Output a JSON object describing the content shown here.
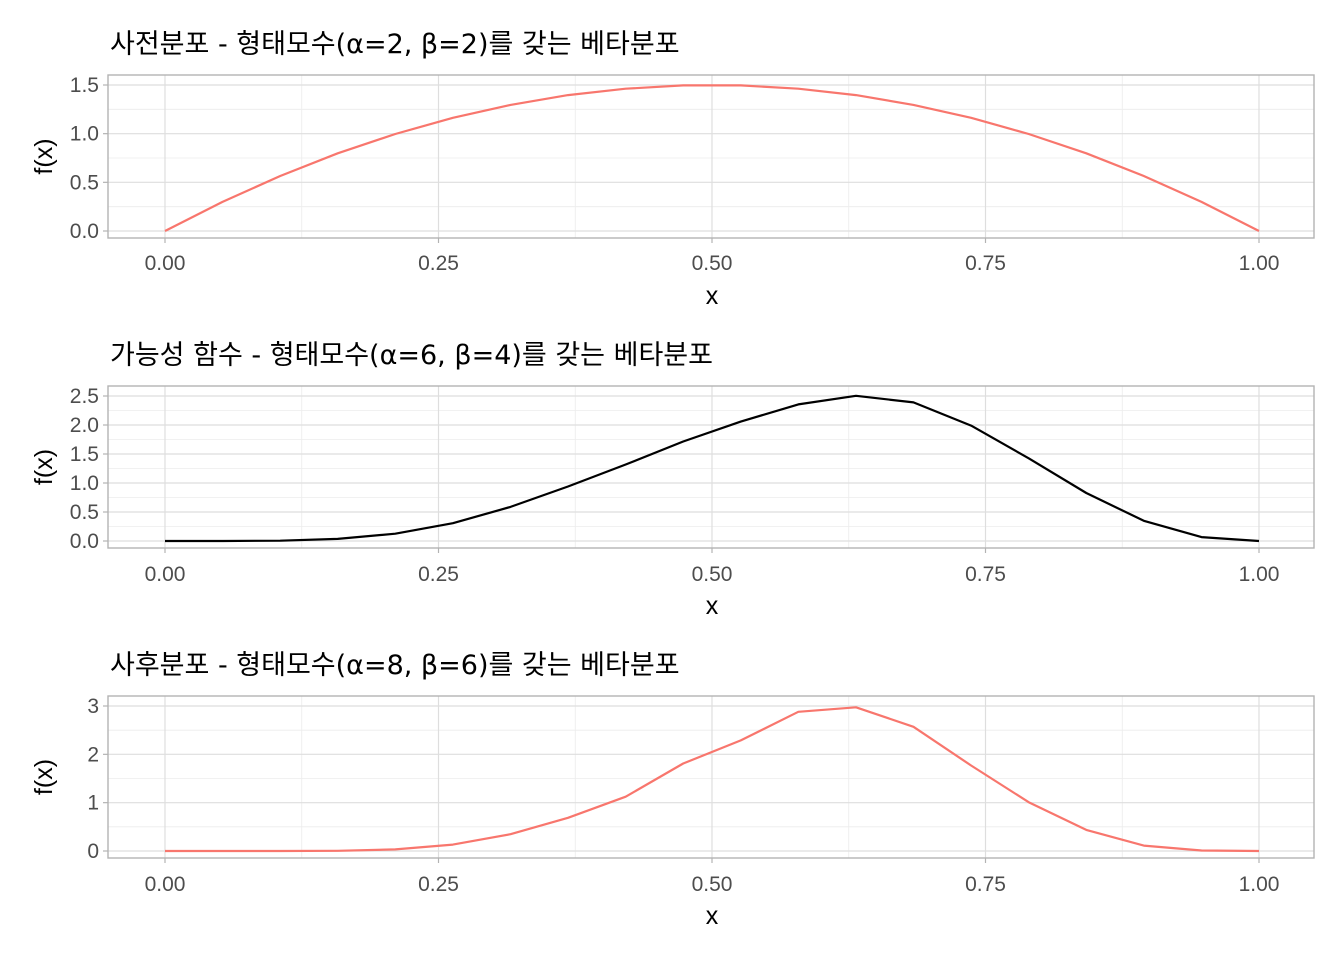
{
  "colors": {
    "prior_line": "#f8766d",
    "likelihood_line": "#000000",
    "posterior_line": "#f8766d",
    "grid": "#dedede",
    "border": "#b3b3b3"
  },
  "chart_data": [
    {
      "type": "line",
      "title": "사전분포 - 형태모수(α=2, β=2)를 갖는 베타분포",
      "xlabel": "x",
      "ylabel": "f(x)",
      "xlim": [
        0,
        1
      ],
      "ylim": [
        0,
        1.5
      ],
      "x_ticks": [
        0,
        0.25,
        0.5,
        0.75,
        1
      ],
      "x_tick_labels": [
        "0.00",
        "0.25",
        "0.50",
        "0.75",
        "1.00"
      ],
      "y_ticks": [
        0,
        0.5,
        1,
        1.5
      ],
      "y_tick_labels": [
        "0.0",
        "0.5",
        "1.0",
        "1.5"
      ],
      "grid": true,
      "color": "#f8766d",
      "series": [
        {
          "x": [
            0,
            0.0526,
            0.1053,
            0.1579,
            0.2105,
            0.2632,
            0.3158,
            0.3684,
            0.4211,
            0.4737,
            0.5263,
            0.5789,
            0.6316,
            0.6842,
            0.7368,
            0.7895,
            0.8421,
            0.8947,
            0.9474,
            1
          ],
          "y": [
            0,
            0.299,
            0.565,
            0.798,
            0.997,
            1.163,
            1.296,
            1.396,
            1.462,
            1.496,
            1.496,
            1.462,
            1.396,
            1.296,
            1.163,
            0.997,
            0.798,
            0.565,
            0.299,
            0
          ]
        }
      ]
    },
    {
      "type": "line",
      "title": "가능성 함수 - 형태모수(α=6, β=4)를 갖는 베타분포",
      "xlabel": "x",
      "ylabel": "f(x)",
      "xlim": [
        0,
        1
      ],
      "ylim": [
        0,
        2.5
      ],
      "x_ticks": [
        0,
        0.25,
        0.5,
        0.75,
        1
      ],
      "x_tick_labels": [
        "0.00",
        "0.25",
        "0.50",
        "0.75",
        "1.00"
      ],
      "y_ticks": [
        0,
        0.5,
        1,
        1.5,
        2,
        2.5
      ],
      "y_tick_labels": [
        "0.0",
        "0.5",
        "1.0",
        "1.5",
        "2.0",
        "2.5"
      ],
      "grid": true,
      "color": "#000000",
      "series": [
        {
          "x": [
            0,
            0.0526,
            0.1053,
            0.1579,
            0.2105,
            0.2632,
            0.3158,
            0.3684,
            0.4211,
            0.4737,
            0.5263,
            0.5789,
            0.6316,
            0.6842,
            0.7368,
            0.7895,
            0.8421,
            0.8947,
            0.9474,
            1
          ],
          "y": [
            0,
            0.0002,
            0.0056,
            0.0363,
            0.1262,
            0.3074,
            0.5884,
            0.9398,
            1.3183,
            1.7157,
            2.0587,
            2.3549,
            2.5042,
            2.3903,
            1.9901,
            1.4258,
            0.8281,
            0.3488,
            0.0678,
            0
          ]
        }
      ]
    },
    {
      "type": "line",
      "title": "사후분포 - 형태모수(α=8, β=6)를 갖는 베타분포",
      "xlabel": "x",
      "ylabel": "f(x)",
      "xlim": [
        0,
        1
      ],
      "ylim": [
        0,
        3
      ],
      "x_ticks": [
        0,
        0.25,
        0.5,
        0.75,
        1
      ],
      "x_tick_labels": [
        "0.00",
        "0.25",
        "0.50",
        "0.75",
        "1.00"
      ],
      "y_ticks": [
        0,
        1,
        2,
        3
      ],
      "y_tick_labels": [
        "0",
        "1",
        "2",
        "3"
      ],
      "grid": true,
      "color": "#f8766d",
      "series": [
        {
          "x": [
            0,
            0.0526,
            0.1053,
            0.1579,
            0.2105,
            0.2632,
            0.3158,
            0.3684,
            0.4211,
            0.4737,
            0.5263,
            0.5789,
            0.6316,
            0.6842,
            0.7368,
            0.7895,
            0.8421,
            0.8947,
            0.9474,
            1
          ],
          "y": [
            0,
            0.0,
            0.0,
            0.004,
            0.0336,
            0.1333,
            0.348,
            0.686,
            1.124,
            1.811,
            2.289,
            2.881,
            2.973,
            2.57,
            1.768,
            1.01,
            0.437,
            0.111,
            0.01,
            0
          ]
        }
      ]
    }
  ]
}
